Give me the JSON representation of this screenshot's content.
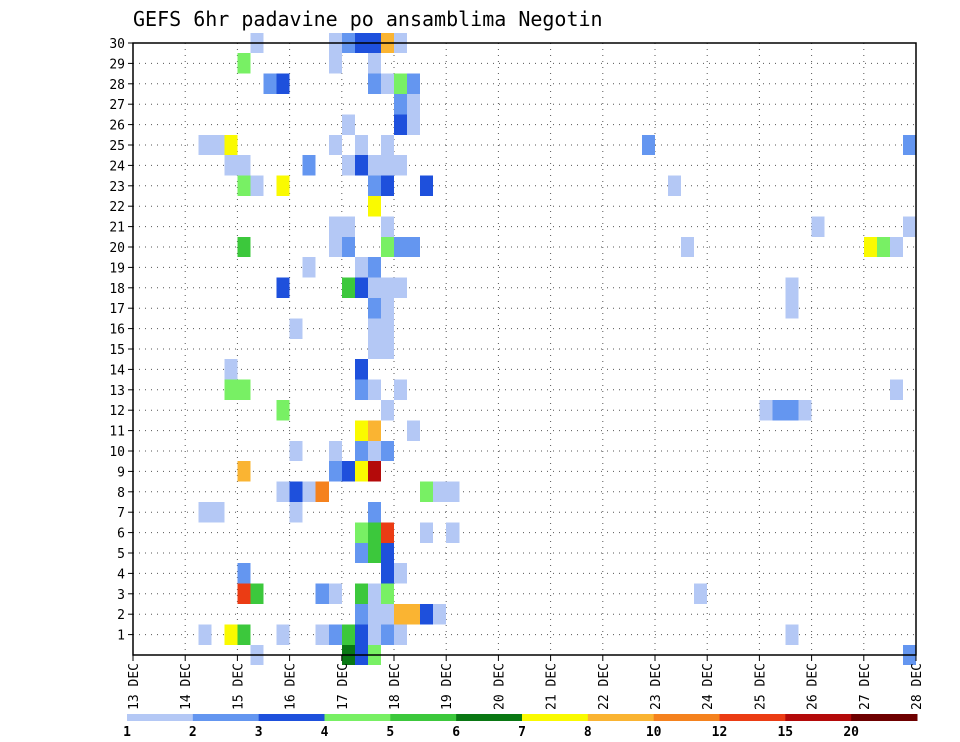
{
  "chart_data": {
    "type": "heatmap",
    "title": "GEFS 6hr padavine po ansamblima Negotin",
    "x_ticks": [
      "13 DEC",
      "14 DEC",
      "15 DEC",
      "16 DEC",
      "17 DEC",
      "18 DEC",
      "19 DEC",
      "20 DEC",
      "21 DEC",
      "22 DEC",
      "23 DEC",
      "24 DEC",
      "25 DEC",
      "26 DEC",
      "27 DEC",
      "28 DEC"
    ],
    "y_ticks": [
      "1",
      "2",
      "3",
      "4",
      "5",
      "6",
      "7",
      "8",
      "9",
      "10",
      "11",
      "12",
      "13",
      "14",
      "15",
      "16",
      "17",
      "18",
      "19",
      "20",
      "21",
      "22",
      "23",
      "24",
      "25",
      "26",
      "27",
      "28",
      "29",
      "30"
    ],
    "xlim": [
      "13 DEC 00Z",
      "28 DEC 00Z"
    ],
    "ylim": [
      0,
      30
    ],
    "grid": true,
    "legend": {
      "placement": "bottom",
      "levels": [
        "1",
        "2",
        "3",
        "4",
        "5",
        "6",
        "7",
        "8",
        "10",
        "12",
        "15",
        "20"
      ],
      "colors": [
        "#b4c8f5",
        "#6496f0",
        "#1e50dc",
        "#78f064",
        "#3cc83c",
        "#0a7814",
        "#fafa00",
        "#fab432",
        "#f5821e",
        "#eb3c14",
        "#b40a0a",
        "#6e0000"
      ]
    },
    "cells": [
      {
        "day": "15 DEC",
        "hour": 6,
        "member": 30,
        "value": 1
      },
      {
        "day": "16 DEC",
        "hour": 18,
        "member": 30,
        "value": 1
      },
      {
        "day": "17 DEC",
        "hour": 0,
        "member": 30,
        "value": 2
      },
      {
        "day": "17 DEC",
        "hour": 6,
        "member": 30,
        "value": 3
      },
      {
        "day": "17 DEC",
        "hour": 12,
        "member": 30,
        "value": 3
      },
      {
        "day": "17 DEC",
        "hour": 18,
        "member": 30,
        "value": 8
      },
      {
        "day": "18 DEC",
        "hour": 0,
        "member": 30,
        "value": 1
      },
      {
        "day": "15 DEC",
        "hour": 0,
        "member": 29,
        "value": 4
      },
      {
        "day": "16 DEC",
        "hour": 18,
        "member": 29,
        "value": 1
      },
      {
        "day": "17 DEC",
        "hour": 12,
        "member": 29,
        "value": 1
      },
      {
        "day": "15 DEC",
        "hour": 12,
        "member": 28,
        "value": 2
      },
      {
        "day": "15 DEC",
        "hour": 18,
        "member": 28,
        "value": 3
      },
      {
        "day": "17 DEC",
        "hour": 12,
        "member": 28,
        "value": 2
      },
      {
        "day": "17 DEC",
        "hour": 18,
        "member": 28,
        "value": 1
      },
      {
        "day": "18 DEC",
        "hour": 0,
        "member": 28,
        "value": 4
      },
      {
        "day": "18 DEC",
        "hour": 6,
        "member": 28,
        "value": 2
      },
      {
        "day": "18 DEC",
        "hour": 0,
        "member": 27,
        "value": 2
      },
      {
        "day": "18 DEC",
        "hour": 6,
        "member": 27,
        "value": 1
      },
      {
        "day": "17 DEC",
        "hour": 0,
        "member": 26,
        "value": 1
      },
      {
        "day": "18 DEC",
        "hour": 0,
        "member": 26,
        "value": 3
      },
      {
        "day": "18 DEC",
        "hour": 6,
        "member": 26,
        "value": 1
      },
      {
        "day": "14 DEC",
        "hour": 6,
        "member": 25,
        "value": 1
      },
      {
        "day": "14 DEC",
        "hour": 12,
        "member": 25,
        "value": 1
      },
      {
        "day": "14 DEC",
        "hour": 18,
        "member": 25,
        "value": 7
      },
      {
        "day": "16 DEC",
        "hour": 18,
        "member": 25,
        "value": 1
      },
      {
        "day": "17 DEC",
        "hour": 6,
        "member": 25,
        "value": 1
      },
      {
        "day": "17 DEC",
        "hour": 18,
        "member": 25,
        "value": 1
      },
      {
        "day": "22 DEC",
        "hour": 18,
        "member": 25,
        "value": 2
      },
      {
        "day": "27 DEC",
        "hour": 18,
        "member": 25,
        "value": 2
      },
      {
        "day": "14 DEC",
        "hour": 18,
        "member": 24,
        "value": 1
      },
      {
        "day": "15 DEC",
        "hour": 0,
        "member": 24,
        "value": 1
      },
      {
        "day": "16 DEC",
        "hour": 6,
        "member": 24,
        "value": 2
      },
      {
        "day": "17 DEC",
        "hour": 0,
        "member": 24,
        "value": 1
      },
      {
        "day": "17 DEC",
        "hour": 6,
        "member": 24,
        "value": 3
      },
      {
        "day": "17 DEC",
        "hour": 12,
        "member": 24,
        "value": 1
      },
      {
        "day": "17 DEC",
        "hour": 18,
        "member": 24,
        "value": 1
      },
      {
        "day": "18 DEC",
        "hour": 0,
        "member": 24,
        "value": 1
      },
      {
        "day": "15 DEC",
        "hour": 0,
        "member": 23,
        "value": 4
      },
      {
        "day": "15 DEC",
        "hour": 6,
        "member": 23,
        "value": 1
      },
      {
        "day": "15 DEC",
        "hour": 18,
        "member": 23,
        "value": 7
      },
      {
        "day": "17 DEC",
        "hour": 12,
        "member": 23,
        "value": 2
      },
      {
        "day": "17 DEC",
        "hour": 18,
        "member": 23,
        "value": 3
      },
      {
        "day": "18 DEC",
        "hour": 12,
        "member": 23,
        "value": 3
      },
      {
        "day": "23 DEC",
        "hour": 6,
        "member": 23,
        "value": 1
      },
      {
        "day": "17 DEC",
        "hour": 12,
        "member": 22,
        "value": 7
      },
      {
        "day": "16 DEC",
        "hour": 18,
        "member": 21,
        "value": 1
      },
      {
        "day": "17 DEC",
        "hour": 0,
        "member": 21,
        "value": 1
      },
      {
        "day": "17 DEC",
        "hour": 18,
        "member": 21,
        "value": 1
      },
      {
        "day": "26 DEC",
        "hour": 0,
        "member": 21,
        "value": 1
      },
      {
        "day": "27 DEC",
        "hour": 18,
        "member": 21,
        "value": 1
      },
      {
        "day": "15 DEC",
        "hour": 0,
        "member": 20,
        "value": 5
      },
      {
        "day": "16 DEC",
        "hour": 18,
        "member": 20,
        "value": 1
      },
      {
        "day": "17 DEC",
        "hour": 0,
        "member": 20,
        "value": 2
      },
      {
        "day": "17 DEC",
        "hour": 18,
        "member": 20,
        "value": 4
      },
      {
        "day": "18 DEC",
        "hour": 0,
        "member": 20,
        "value": 2
      },
      {
        "day": "18 DEC",
        "hour": 6,
        "member": 20,
        "value": 2
      },
      {
        "day": "23 DEC",
        "hour": 12,
        "member": 20,
        "value": 1
      },
      {
        "day": "27 DEC",
        "hour": 0,
        "member": 20,
        "value": 7
      },
      {
        "day": "27 DEC",
        "hour": 6,
        "member": 20,
        "value": 4
      },
      {
        "day": "27 DEC",
        "hour": 12,
        "member": 20,
        "value": 1
      },
      {
        "day": "16 DEC",
        "hour": 6,
        "member": 19,
        "value": 1
      },
      {
        "day": "17 DEC",
        "hour": 6,
        "member": 19,
        "value": 1
      },
      {
        "day": "17 DEC",
        "hour": 12,
        "member": 19,
        "value": 2
      },
      {
        "day": "15 DEC",
        "hour": 18,
        "member": 18,
        "value": 3
      },
      {
        "day": "17 DEC",
        "hour": 0,
        "member": 18,
        "value": 5
      },
      {
        "day": "17 DEC",
        "hour": 6,
        "member": 18,
        "value": 3
      },
      {
        "day": "17 DEC",
        "hour": 12,
        "member": 18,
        "value": 1
      },
      {
        "day": "17 DEC",
        "hour": 18,
        "member": 18,
        "value": 1
      },
      {
        "day": "18 DEC",
        "hour": 0,
        "member": 18,
        "value": 1
      },
      {
        "day": "25 DEC",
        "hour": 12,
        "member": 18,
        "value": 1
      },
      {
        "day": "17 DEC",
        "hour": 12,
        "member": 17,
        "value": 2
      },
      {
        "day": "17 DEC",
        "hour": 18,
        "member": 17,
        "value": 1
      },
      {
        "day": "25 DEC",
        "hour": 12,
        "member": 17,
        "value": 1
      },
      {
        "day": "16 DEC",
        "hour": 0,
        "member": 16,
        "value": 1
      },
      {
        "day": "17 DEC",
        "hour": 12,
        "member": 16,
        "value": 1
      },
      {
        "day": "17 DEC",
        "hour": 18,
        "member": 16,
        "value": 1
      },
      {
        "day": "17 DEC",
        "hour": 12,
        "member": 15,
        "value": 1
      },
      {
        "day": "17 DEC",
        "hour": 18,
        "member": 15,
        "value": 1
      },
      {
        "day": "14 DEC",
        "hour": 18,
        "member": 14,
        "value": 1
      },
      {
        "day": "17 DEC",
        "hour": 6,
        "member": 14,
        "value": 3
      },
      {
        "day": "14 DEC",
        "hour": 18,
        "member": 13,
        "value": 4
      },
      {
        "day": "15 DEC",
        "hour": 0,
        "member": 13,
        "value": 4
      },
      {
        "day": "17 DEC",
        "hour": 6,
        "member": 13,
        "value": 2
      },
      {
        "day": "17 DEC",
        "hour": 12,
        "member": 13,
        "value": 1
      },
      {
        "day": "18 DEC",
        "hour": 0,
        "member": 13,
        "value": 1
      },
      {
        "day": "27 DEC",
        "hour": 12,
        "member": 13,
        "value": 1
      },
      {
        "day": "15 DEC",
        "hour": 18,
        "member": 12,
        "value": 4
      },
      {
        "day": "17 DEC",
        "hour": 18,
        "member": 12,
        "value": 1
      },
      {
        "day": "25 DEC",
        "hour": 0,
        "member": 12,
        "value": 1
      },
      {
        "day": "25 DEC",
        "hour": 6,
        "member": 12,
        "value": 2
      },
      {
        "day": "25 DEC",
        "hour": 12,
        "member": 12,
        "value": 2
      },
      {
        "day": "25 DEC",
        "hour": 18,
        "member": 12,
        "value": 1
      },
      {
        "day": "17 DEC",
        "hour": 6,
        "member": 11,
        "value": 7
      },
      {
        "day": "17 DEC",
        "hour": 12,
        "member": 11,
        "value": 8
      },
      {
        "day": "18 DEC",
        "hour": 6,
        "member": 11,
        "value": 1
      },
      {
        "day": "16 DEC",
        "hour": 0,
        "member": 10,
        "value": 1
      },
      {
        "day": "16 DEC",
        "hour": 18,
        "member": 10,
        "value": 1
      },
      {
        "day": "17 DEC",
        "hour": 6,
        "member": 10,
        "value": 2
      },
      {
        "day": "17 DEC",
        "hour": 12,
        "member": 10,
        "value": 1
      },
      {
        "day": "17 DEC",
        "hour": 18,
        "member": 10,
        "value": 2
      },
      {
        "day": "15 DEC",
        "hour": 0,
        "member": 9,
        "value": 8
      },
      {
        "day": "16 DEC",
        "hour": 18,
        "member": 9,
        "value": 2
      },
      {
        "day": "17 DEC",
        "hour": 0,
        "member": 9,
        "value": 3
      },
      {
        "day": "17 DEC",
        "hour": 6,
        "member": 9,
        "value": 7
      },
      {
        "day": "17 DEC",
        "hour": 12,
        "member": 9,
        "value": 15
      },
      {
        "day": "15 DEC",
        "hour": 18,
        "member": 8,
        "value": 1
      },
      {
        "day": "16 DEC",
        "hour": 0,
        "member": 8,
        "value": 3
      },
      {
        "day": "16 DEC",
        "hour": 6,
        "member": 8,
        "value": 1
      },
      {
        "day": "16 DEC",
        "hour": 12,
        "member": 8,
        "value": 10
      },
      {
        "day": "18 DEC",
        "hour": 12,
        "member": 8,
        "value": 4
      },
      {
        "day": "18 DEC",
        "hour": 18,
        "member": 8,
        "value": 1
      },
      {
        "day": "19 DEC",
        "hour": 0,
        "member": 8,
        "value": 1
      },
      {
        "day": "14 DEC",
        "hour": 6,
        "member": 7,
        "value": 1
      },
      {
        "day": "14 DEC",
        "hour": 12,
        "member": 7,
        "value": 1
      },
      {
        "day": "16 DEC",
        "hour": 0,
        "member": 7,
        "value": 1
      },
      {
        "day": "17 DEC",
        "hour": 12,
        "member": 7,
        "value": 2
      },
      {
        "day": "17 DEC",
        "hour": 6,
        "member": 6,
        "value": 4
      },
      {
        "day": "17 DEC",
        "hour": 12,
        "member": 6,
        "value": 5
      },
      {
        "day": "17 DEC",
        "hour": 18,
        "member": 6,
        "value": 12
      },
      {
        "day": "18 DEC",
        "hour": 12,
        "member": 6,
        "value": 1
      },
      {
        "day": "19 DEC",
        "hour": 0,
        "member": 6,
        "value": 1
      },
      {
        "day": "17 DEC",
        "hour": 6,
        "member": 5,
        "value": 2
      },
      {
        "day": "17 DEC",
        "hour": 12,
        "member": 5,
        "value": 5
      },
      {
        "day": "17 DEC",
        "hour": 18,
        "member": 5,
        "value": 3
      },
      {
        "day": "15 DEC",
        "hour": 0,
        "member": 4,
        "value": 2
      },
      {
        "day": "17 DEC",
        "hour": 18,
        "member": 4,
        "value": 3
      },
      {
        "day": "18 DEC",
        "hour": 0,
        "member": 4,
        "value": 1
      },
      {
        "day": "15 DEC",
        "hour": 0,
        "member": 3,
        "value": 12
      },
      {
        "day": "15 DEC",
        "hour": 6,
        "member": 3,
        "value": 5
      },
      {
        "day": "16 DEC",
        "hour": 12,
        "member": 3,
        "value": 2
      },
      {
        "day": "16 DEC",
        "hour": 18,
        "member": 3,
        "value": 1
      },
      {
        "day": "17 DEC",
        "hour": 6,
        "member": 3,
        "value": 5
      },
      {
        "day": "17 DEC",
        "hour": 12,
        "member": 3,
        "value": 1
      },
      {
        "day": "17 DEC",
        "hour": 18,
        "member": 3,
        "value": 4
      },
      {
        "day": "23 DEC",
        "hour": 18,
        "member": 3,
        "value": 1
      },
      {
        "day": "17 DEC",
        "hour": 6,
        "member": 2,
        "value": 2
      },
      {
        "day": "17 DEC",
        "hour": 12,
        "member": 2,
        "value": 1
      },
      {
        "day": "17 DEC",
        "hour": 18,
        "member": 2,
        "value": 1
      },
      {
        "day": "18 DEC",
        "hour": 0,
        "member": 2,
        "value": 8
      },
      {
        "day": "18 DEC",
        "hour": 6,
        "member": 2,
        "value": 8
      },
      {
        "day": "18 DEC",
        "hour": 12,
        "member": 2,
        "value": 3
      },
      {
        "day": "18 DEC",
        "hour": 18,
        "member": 2,
        "value": 1
      },
      {
        "day": "14 DEC",
        "hour": 6,
        "member": 1,
        "value": 1
      },
      {
        "day": "14 DEC",
        "hour": 18,
        "member": 1,
        "value": 7
      },
      {
        "day": "15 DEC",
        "hour": 0,
        "member": 1,
        "value": 5
      },
      {
        "day": "15 DEC",
        "hour": 18,
        "member": 1,
        "value": 1
      },
      {
        "day": "16 DEC",
        "hour": 12,
        "member": 1,
        "value": 1
      },
      {
        "day": "16 DEC",
        "hour": 18,
        "member": 1,
        "value": 2
      },
      {
        "day": "17 DEC",
        "hour": 0,
        "member": 1,
        "value": 5
      },
      {
        "day": "17 DEC",
        "hour": 6,
        "member": 1,
        "value": 3
      },
      {
        "day": "17 DEC",
        "hour": 12,
        "member": 1,
        "value": 1
      },
      {
        "day": "17 DEC",
        "hour": 18,
        "member": 1,
        "value": 2
      },
      {
        "day": "18 DEC",
        "hour": 0,
        "member": 1,
        "value": 1
      },
      {
        "day": "25 DEC",
        "hour": 12,
        "member": 1,
        "value": 1
      },
      {
        "day": "15 DEC",
        "hour": 6,
        "member": 0,
        "value": 1
      },
      {
        "day": "17 DEC",
        "hour": 0,
        "member": 0,
        "value": 6
      },
      {
        "day": "17 DEC",
        "hour": 6,
        "member": 0,
        "value": 3
      },
      {
        "day": "17 DEC",
        "hour": 12,
        "member": 0,
        "value": 4
      },
      {
        "day": "27 DEC",
        "hour": 18,
        "member": 0,
        "value": 2
      }
    ]
  }
}
